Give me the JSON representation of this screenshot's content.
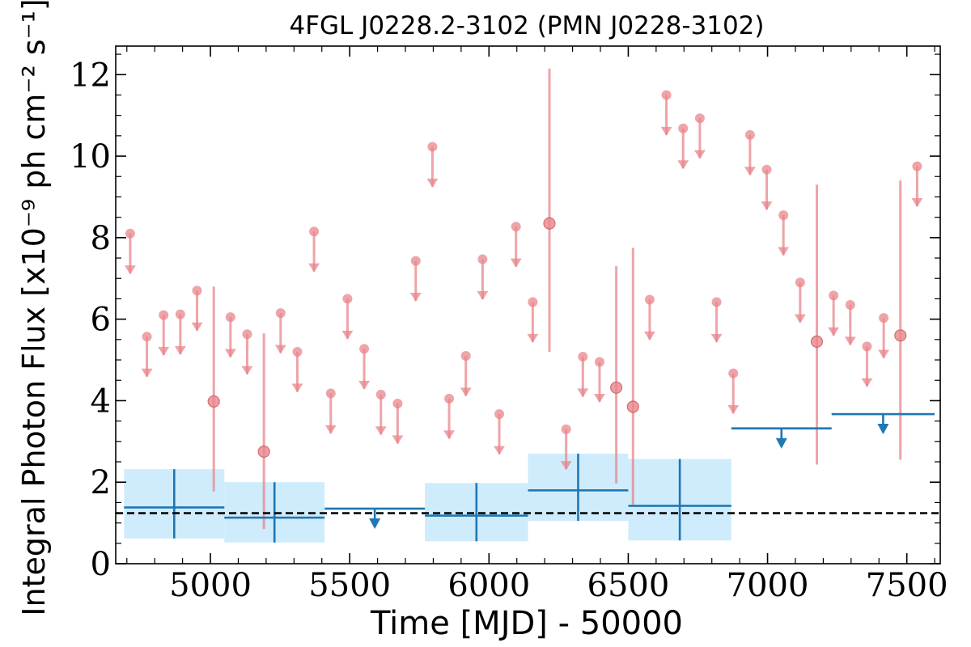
{
  "chart_data": {
    "type": "scatter",
    "title": "4FGL J0228.2-3102 (PMN J0228-3102)",
    "xlabel": "Time [MJD] - 50000",
    "ylabel": "Integral Photon Flux [x10⁻⁹ ph cm⁻² s⁻¹]",
    "xlim": [
      4660,
      7620
    ],
    "ylim": [
      0,
      12.7
    ],
    "xticks": [
      5000,
      5500,
      6000,
      6500,
      7000,
      7500
    ],
    "yticks": [
      0,
      2,
      4,
      6,
      8,
      10,
      12
    ],
    "grid": false,
    "legend": "none",
    "mean_flux": 1.24,
    "colors": {
      "short_bins": "#e8868b",
      "long_bins": "#1f77b4",
      "long_bins_band": "#cfecfc",
      "mean_line": "#000000"
    },
    "series": [
      {
        "points": [
          {
            "x": 4712,
            "y": 8.1,
            "ul": true
          },
          {
            "x": 4772,
            "y": 5.57,
            "ul": true
          },
          {
            "x": 4832,
            "y": 6.1,
            "ul": true
          },
          {
            "x": 4892,
            "y": 6.12,
            "ul": true
          },
          {
            "x": 4952,
            "y": 6.7,
            "ul": true
          },
          {
            "x": 5012,
            "y": 3.98,
            "ylo": 1.77,
            "yhi": 6.8
          },
          {
            "x": 5072,
            "y": 6.05,
            "ul": true
          },
          {
            "x": 5132,
            "y": 5.63,
            "ul": true
          },
          {
            "x": 5192,
            "y": 2.75,
            "ylo": 0.85,
            "yhi": 5.65
          },
          {
            "x": 5252,
            "y": 6.15,
            "ul": true
          },
          {
            "x": 5312,
            "y": 5.2,
            "ul": true
          },
          {
            "x": 5372,
            "y": 8.15,
            "ul": true
          },
          {
            "x": 5432,
            "y": 4.18,
            "ul": true
          },
          {
            "x": 5492,
            "y": 6.5,
            "ul": true
          },
          {
            "x": 5552,
            "y": 5.27,
            "ul": true
          },
          {
            "x": 5612,
            "y": 4.15,
            "ul": true
          },
          {
            "x": 5672,
            "y": 3.93,
            "ul": true
          },
          {
            "x": 5737,
            "y": 7.43,
            "ul": true
          },
          {
            "x": 5797,
            "y": 10.23,
            "ul": true
          },
          {
            "x": 5857,
            "y": 4.05,
            "ul": true
          },
          {
            "x": 5917,
            "y": 5.1,
            "ul": true
          },
          {
            "x": 5977,
            "y": 7.47,
            "ul": true
          },
          {
            "x": 6037,
            "y": 3.67,
            "ul": true
          },
          {
            "x": 6097,
            "y": 8.27,
            "ul": true
          },
          {
            "x": 6157,
            "y": 6.42,
            "ul": true
          },
          {
            "x": 6217,
            "y": 8.35,
            "ylo": 5.2,
            "yhi": 12.15
          },
          {
            "x": 6277,
            "y": 3.3,
            "ul": true
          },
          {
            "x": 6337,
            "y": 5.08,
            "ul": true
          },
          {
            "x": 6397,
            "y": 4.95,
            "ul": true
          },
          {
            "x": 6457,
            "y": 4.32,
            "ylo": 1.97,
            "yhi": 7.3
          },
          {
            "x": 6517,
            "y": 3.85,
            "ylo": 1.45,
            "yhi": 7.75
          },
          {
            "x": 6577,
            "y": 6.48,
            "ul": true
          },
          {
            "x": 6637,
            "y": 11.5,
            "ul": true
          },
          {
            "x": 6697,
            "y": 10.68,
            "ul": true
          },
          {
            "x": 6757,
            "y": 10.93,
            "ul": true
          },
          {
            "x": 6817,
            "y": 6.42,
            "ul": true
          },
          {
            "x": 6877,
            "y": 4.67,
            "ul": true
          },
          {
            "x": 6937,
            "y": 10.52,
            "ul": true
          },
          {
            "x": 6997,
            "y": 9.67,
            "ul": true
          },
          {
            "x": 7057,
            "y": 8.55,
            "ul": true
          },
          {
            "x": 7117,
            "y": 6.9,
            "ul": true
          },
          {
            "x": 7177,
            "y": 5.45,
            "ylo": 2.43,
            "yhi": 9.3
          },
          {
            "x": 7237,
            "y": 6.58,
            "ul": true
          },
          {
            "x": 7297,
            "y": 6.35,
            "ul": true
          },
          {
            "x": 7357,
            "y": 5.33,
            "ul": true
          },
          {
            "x": 7417,
            "y": 6.03,
            "ul": true
          },
          {
            "x": 7477,
            "y": 5.6,
            "ylo": 2.55,
            "yhi": 9.4
          },
          {
            "x": 7537,
            "y": 9.75,
            "ul": true
          }
        ]
      },
      {
        "points": [
          {
            "x": 4870,
            "xlo": 4690,
            "xhi": 5050,
            "y": 1.38,
            "ylo": 0.62,
            "yhi": 2.32
          },
          {
            "x": 5230,
            "xlo": 5050,
            "xhi": 5410,
            "y": 1.13,
            "ylo": 0.52,
            "yhi": 2.0
          },
          {
            "x": 5590,
            "xlo": 5410,
            "xhi": 5770,
            "y": 1.35,
            "ul": true
          },
          {
            "x": 5955,
            "xlo": 5770,
            "xhi": 6140,
            "y": 1.18,
            "ylo": 0.55,
            "yhi": 1.98
          },
          {
            "x": 6320,
            "xlo": 6140,
            "xhi": 6500,
            "y": 1.8,
            "ylo": 1.05,
            "yhi": 2.7
          },
          {
            "x": 6685,
            "xlo": 6500,
            "xhi": 6870,
            "y": 1.42,
            "ylo": 0.57,
            "yhi": 2.57
          },
          {
            "x": 7050,
            "xlo": 6870,
            "xhi": 7230,
            "y": 3.32,
            "ul": true
          },
          {
            "x": 7415,
            "xlo": 7230,
            "xhi": 7600,
            "y": 3.67,
            "ul": true
          }
        ]
      }
    ]
  }
}
